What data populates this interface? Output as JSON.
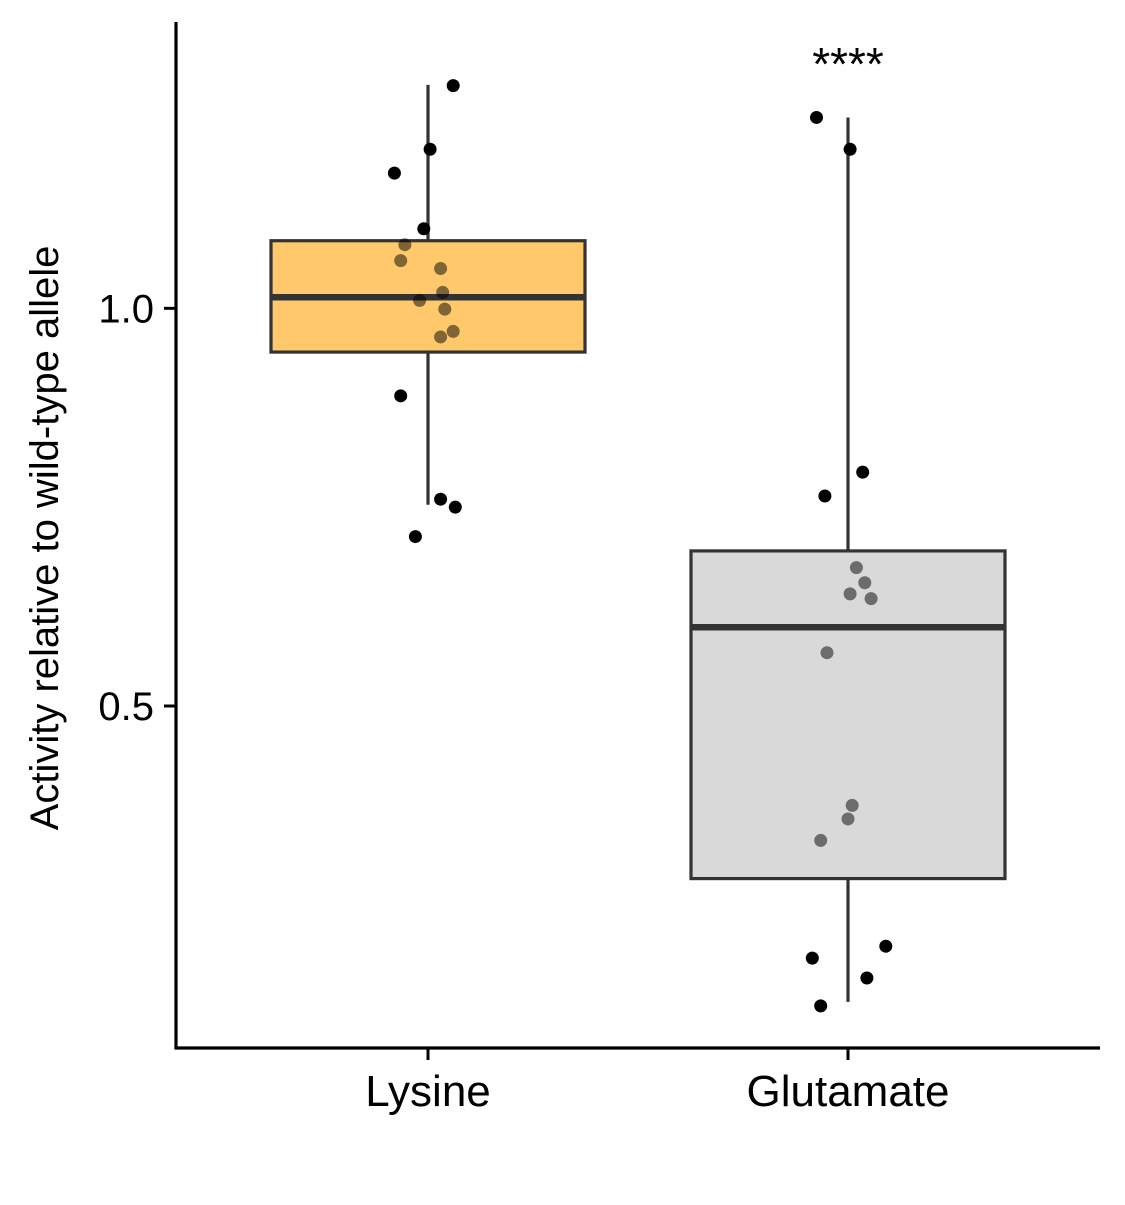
{
  "chart_data": {
    "type": "box",
    "title": "",
    "xlabel": "",
    "ylabel": "Activity relative to wild-type allele",
    "ylim": [
      0.07,
      1.36
    ],
    "y_ticks": [
      {
        "value": 0.5,
        "label": "0.5"
      },
      {
        "value": 1.0,
        "label": "1.0"
      }
    ],
    "grid": false,
    "legend": "none",
    "categories": [
      "Lysine",
      "Glutamate"
    ],
    "series": [
      {
        "category": "Lysine",
        "fill": "#ffc96b",
        "q1": 0.945,
        "median": 1.014,
        "q3": 1.085,
        "whisker_low": 0.753,
        "whisker_high": 1.281,
        "points": [
          {
            "dx": 0.06,
            "y": 1.28
          },
          {
            "dx": 0.005,
            "y": 1.2
          },
          {
            "dx": -0.08,
            "y": 1.17
          },
          {
            "dx": -0.01,
            "y": 1.1
          },
          {
            "dx": -0.055,
            "y": 1.08
          },
          {
            "dx": -0.065,
            "y": 1.06
          },
          {
            "dx": 0.03,
            "y": 1.05
          },
          {
            "dx": 0.035,
            "y": 1.02
          },
          {
            "dx": -0.02,
            "y": 1.01
          },
          {
            "dx": 0.04,
            "y": 0.999
          },
          {
            "dx": 0.06,
            "y": 0.971
          },
          {
            "dx": 0.03,
            "y": 0.964
          },
          {
            "dx": -0.065,
            "y": 0.89
          },
          {
            "dx": 0.03,
            "y": 0.76
          },
          {
            "dx": 0.065,
            "y": 0.75
          },
          {
            "dx": -0.03,
            "y": 0.713
          }
        ]
      },
      {
        "category": "Glutamate",
        "fill": "#d9d9d9",
        "q1": 0.283,
        "median": 0.599,
        "q3": 0.695,
        "whisker_low": 0.128,
        "whisker_high": 1.24,
        "points": [
          {
            "dx": -0.075,
            "y": 1.24
          },
          {
            "dx": 0.005,
            "y": 1.2
          },
          {
            "dx": 0.035,
            "y": 0.794
          },
          {
            "dx": -0.055,
            "y": 0.764
          },
          {
            "dx": 0.02,
            "y": 0.674
          },
          {
            "dx": 0.04,
            "y": 0.655
          },
          {
            "dx": 0.005,
            "y": 0.641
          },
          {
            "dx": 0.055,
            "y": 0.635
          },
          {
            "dx": -0.05,
            "y": 0.567
          },
          {
            "dx": 0.01,
            "y": 0.375
          },
          {
            "dx": 0.0,
            "y": 0.358
          },
          {
            "dx": -0.065,
            "y": 0.331
          },
          {
            "dx": 0.09,
            "y": 0.198
          },
          {
            "dx": -0.085,
            "y": 0.183
          },
          {
            "dx": 0.045,
            "y": 0.158
          },
          {
            "dx": -0.065,
            "y": 0.123
          }
        ]
      }
    ],
    "annotations": [
      {
        "category": "Glutamate",
        "text": "****"
      }
    ],
    "colors": {
      "outline": "#333333",
      "point": "#000000",
      "axis": "#000000"
    }
  }
}
